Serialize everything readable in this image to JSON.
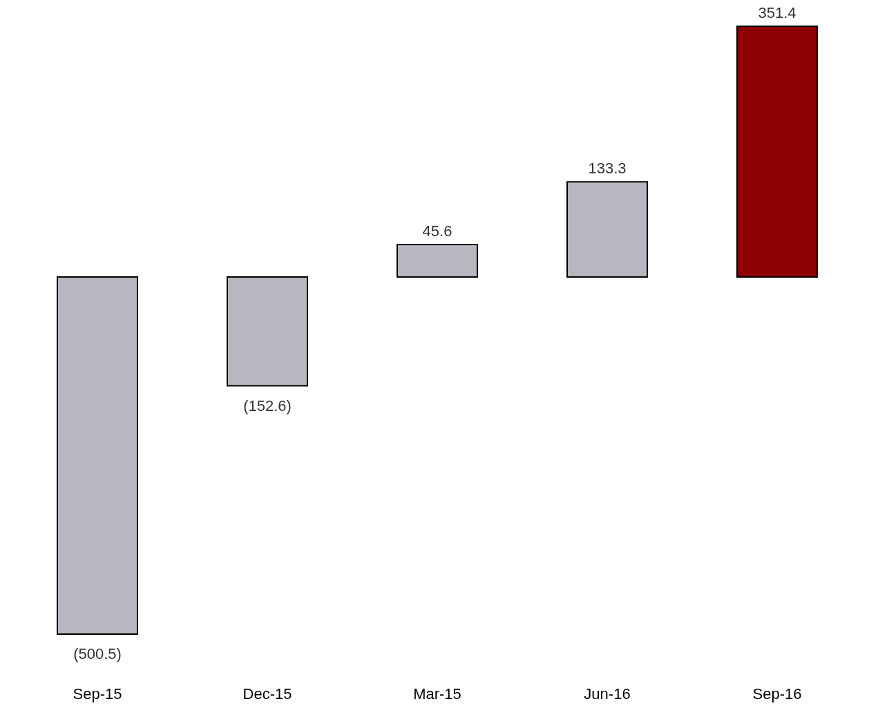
{
  "chart_data": {
    "type": "bar",
    "categories": [
      "Sep-15",
      "Dec-15",
      "Mar-15",
      "Jun-16",
      "Sep-16"
    ],
    "values": [
      -500.5,
      -152.6,
      45.6,
      133.3,
      351.4
    ],
    "colors": [
      "#b7b8bf",
      "#b7b8bf",
      "#b7b8bf",
      "#b7b8bf",
      "#8b0000"
    ],
    "value_labels": [
      "(500.5)",
      "(152.6)",
      "45.6",
      "133.3",
      "351.4"
    ],
    "grid": false,
    "legend": false,
    "tick_labels": "x"
  }
}
